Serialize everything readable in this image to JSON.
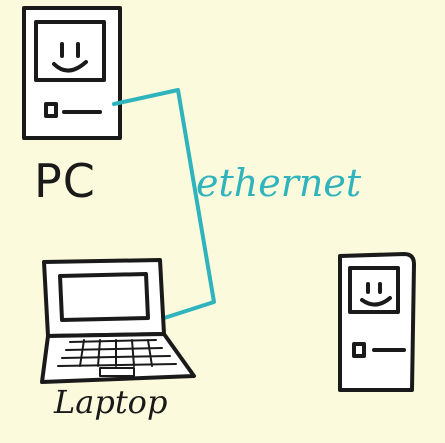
{
  "diagram": {
    "nodes": [
      {
        "id": "pc",
        "label": "PC"
      },
      {
        "id": "laptop",
        "label": "Laptop"
      },
      {
        "id": "device",
        "label": ""
      }
    ],
    "edges": [
      {
        "from": "pc",
        "to": "laptop",
        "label": "ethernet"
      }
    ],
    "colors": {
      "background": "#fcfadc",
      "ink": "#1a1a1a",
      "cable": "#2fb3bd"
    }
  }
}
